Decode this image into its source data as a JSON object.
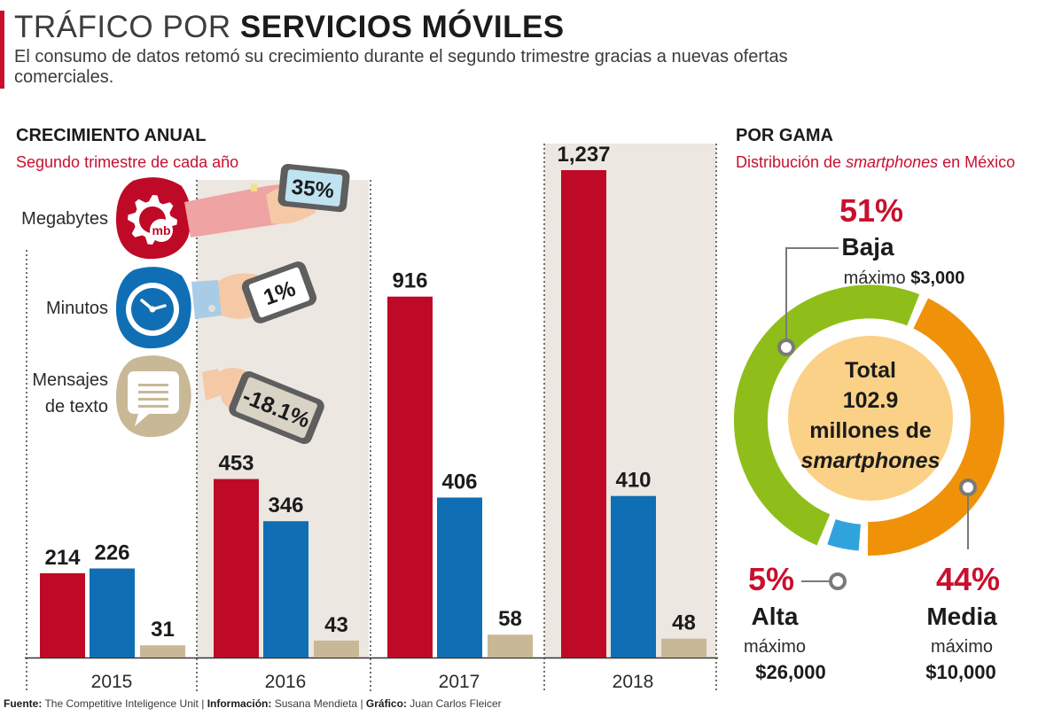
{
  "header": {
    "title_light": "TRÁFICO POR",
    "title_bold": "SERVICIOS MÓVILES",
    "subtitle": "El consumo de datos retomó su crecimiento durante el segundo trimestre gracias a nuevas ofertas comerciales."
  },
  "colors": {
    "megabytes": "#be0a26",
    "minutos": "#106fb4",
    "mensajes": "#c9b896",
    "baja": "#8fbe1a",
    "media": "#ef920a",
    "alta": "#31a3dc",
    "center": "#fbd187",
    "accent": "#c8102e"
  },
  "legend": [
    {
      "label_lines": [
        "Megabytes"
      ],
      "icon": "gear-mb-icon",
      "change": "35%"
    },
    {
      "label_lines": [
        "Minutos"
      ],
      "icon": "clock-icon",
      "change": "1%"
    },
    {
      "label_lines": [
        "Mensajes",
        "de texto"
      ],
      "icon": "chat-lines-icon",
      "change": "-18.1%"
    }
  ],
  "chart_data": [
    {
      "type": "bar",
      "title": "CRECIMIENTO ANUAL",
      "subtitle": "Segundo trimestre de cada año",
      "categories": [
        "2015",
        "2016",
        "2017",
        "2018"
      ],
      "series": [
        {
          "name": "Megabytes",
          "values": [
            214,
            453,
            916,
            1237
          ],
          "labels": [
            "214",
            "453",
            "916",
            "1,237"
          ]
        },
        {
          "name": "Minutos",
          "values": [
            226,
            346,
            406,
            410
          ],
          "labels": [
            "226",
            "346",
            "406",
            "410"
          ]
        },
        {
          "name": "Mensajes de texto",
          "values": [
            31,
            43,
            58,
            48
          ],
          "labels": [
            "31",
            "43",
            "58",
            "48"
          ]
        }
      ]
    },
    {
      "type": "pie",
      "title": "POR GAMA",
      "subtitle_pre": "Distribución de ",
      "subtitle_em": "smartphones",
      "subtitle_post": " en México",
      "center_lines": [
        "Total",
        "102.9",
        "millones de"
      ],
      "center_em": "smartphones",
      "slices": [
        {
          "name": "Baja",
          "percent": 51,
          "pct_label": "51%",
          "price_label": "máximo",
          "price": "$3,000"
        },
        {
          "name": "Media",
          "percent": 44,
          "pct_label": "44%",
          "price_label": "máximo",
          "price": "$10,000"
        },
        {
          "name": "Alta",
          "percent": 5,
          "pct_label": "5%",
          "price_label": "máximo",
          "price": "$26,000"
        }
      ]
    }
  ],
  "footer": {
    "fuente_label": "Fuente:",
    "fuente": "The Competitive Inteligence Unit",
    "info_label": "Información:",
    "info": "Susana Mendieta",
    "grafico_label": "Gráfico:",
    "grafico": "Juan Carlos Fleicer"
  }
}
